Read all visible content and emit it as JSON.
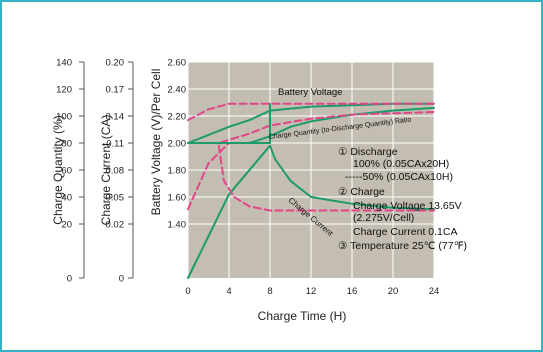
{
  "colors": {
    "frame": "#35b3c9",
    "plot_bg": "#c4bdb1",
    "grid": "#ffffff",
    "charge_line": "#1e9b6a",
    "discharge_line": "#e0468a"
  },
  "chart_data": {
    "type": "line",
    "xlabel": "Charge Time (H)",
    "xticks": [
      "0",
      "4",
      "8",
      "12",
      "16",
      "20",
      "24"
    ],
    "xlim": [
      0,
      24
    ],
    "axes": [
      {
        "label": "Charge Quantity (%)",
        "ticks": [
          "140",
          "120",
          "100",
          "80",
          "60",
          "40",
          "20",
          "0"
        ]
      },
      {
        "label": "Charge Current (CA)",
        "ticks": [
          "0.20",
          "0.17",
          "0.14",
          "0.11",
          "0.08",
          "0.05",
          "0.02",
          "0"
        ]
      },
      {
        "label": "Battery Voltage (V)/Per Cell",
        "ticks": [
          "2.60",
          "2.40",
          "2.20",
          "2.00",
          "1.80",
          "1.60",
          "1.40"
        ]
      }
    ],
    "series": [
      {
        "name": "Battery Voltage",
        "style": "charge",
        "points": [
          [
            0,
            2.0
          ],
          [
            2,
            2.06
          ],
          [
            4,
            2.12
          ],
          [
            6,
            2.17
          ],
          [
            8,
            2.24
          ],
          [
            12,
            2.27
          ],
          [
            16,
            2.28
          ],
          [
            20,
            2.29
          ],
          [
            24,
            2.29
          ]
        ]
      },
      {
        "style": "discharge",
        "points": [
          [
            0,
            2.17
          ],
          [
            2,
            2.25
          ],
          [
            4,
            2.29
          ],
          [
            8,
            2.29
          ],
          [
            12,
            2.29
          ],
          [
            16,
            2.29
          ],
          [
            20,
            2.29
          ],
          [
            24,
            2.29
          ]
        ]
      },
      {
        "name": "Charge Quantity (to-Discharge Quantity) Ratio",
        "style": "charge",
        "points": [
          [
            0,
            2.0
          ],
          [
            2,
            2.0
          ],
          [
            4,
            2.0
          ],
          [
            6,
            2.0
          ],
          [
            8,
            2.05
          ],
          [
            10,
            2.12
          ],
          [
            12,
            2.16
          ],
          [
            16,
            2.21
          ],
          [
            20,
            2.24
          ],
          [
            24,
            2.26
          ]
        ]
      },
      {
        "style": "discharge",
        "points": [
          [
            0,
            2.0
          ],
          [
            3,
            2.0
          ],
          [
            6,
            2.07
          ],
          [
            8,
            2.13
          ],
          [
            12,
            2.18
          ],
          [
            16,
            2.21
          ],
          [
            20,
            2.22
          ],
          [
            24,
            2.23
          ]
        ]
      },
      {
        "name": "Charge Current",
        "style": "charge",
        "points": [
          [
            0,
            1.0
          ],
          [
            4,
            1.62
          ],
          [
            8,
            1.98
          ],
          [
            8.5,
            1.88
          ],
          [
            10,
            1.72
          ],
          [
            12,
            1.6
          ],
          [
            16,
            1.55
          ],
          [
            20,
            1.52
          ],
          [
            24,
            1.51
          ]
        ]
      },
      {
        "style": "discharge",
        "points": [
          [
            0,
            1.51
          ],
          [
            2,
            1.85
          ],
          [
            4,
            2.0
          ],
          [
            8,
            2.0
          ]
        ]
      },
      {
        "style": "charge",
        "points": [
          [
            0,
            2.0
          ],
          [
            8,
            2.0
          ],
          [
            8,
            2.29
          ]
        ]
      },
      {
        "style": "discharge",
        "points": [
          [
            3,
            1.98
          ],
          [
            3.5,
            1.72
          ],
          [
            4.5,
            1.6
          ],
          [
            6,
            1.53
          ],
          [
            8,
            1.5
          ],
          [
            12,
            1.5
          ],
          [
            24,
            1.5
          ]
        ]
      }
    ],
    "annotations": [
      {
        "text": "Battery Voltage"
      },
      {
        "text": "Charge Quantity (to-Discharge Quantity) Ratio"
      },
      {
        "text": "Charge Current"
      },
      {
        "text": "① Discharge"
      },
      {
        "text": "100% (0.05CAx20H)"
      },
      {
        "text": "-----50% (0.05CAx10H)"
      },
      {
        "text": "② Charge"
      },
      {
        "text": "Charge Voltage 13.65V"
      },
      {
        "text": "(2.275V/Cell)"
      },
      {
        "text": "Charge Current 0.1CA"
      },
      {
        "text": "③ Temperature 25℃ (77℉)"
      }
    ]
  }
}
